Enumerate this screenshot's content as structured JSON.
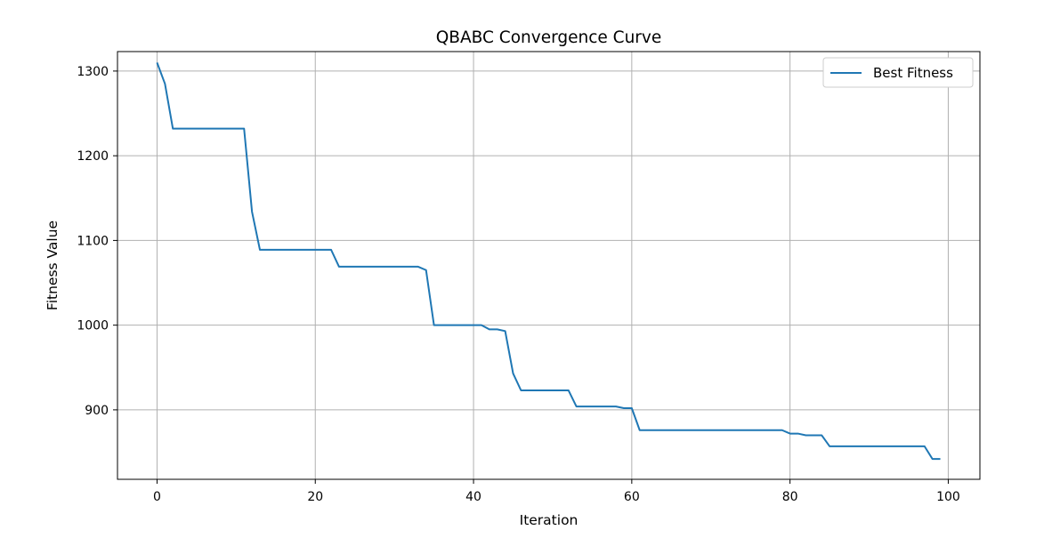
{
  "chart_data": {
    "type": "line",
    "title": "QBABC Convergence Curve",
    "xlabel": "Iteration",
    "ylabel": "Fitness Value",
    "xlim": [
      -5,
      104
    ],
    "ylim": [
      818,
      1323
    ],
    "xticks": [
      0,
      20,
      40,
      60,
      80,
      100
    ],
    "yticks": [
      900,
      1000,
      1100,
      1200,
      1300
    ],
    "grid": true,
    "legend_position": "top-right",
    "series": [
      {
        "name": "Best Fitness",
        "color": "#1f77b4",
        "x": [
          0,
          1,
          2,
          3,
          4,
          5,
          6,
          7,
          8,
          9,
          10,
          11,
          12,
          13,
          14,
          15,
          16,
          17,
          18,
          19,
          20,
          21,
          22,
          23,
          24,
          25,
          26,
          27,
          28,
          29,
          30,
          31,
          32,
          33,
          34,
          35,
          36,
          37,
          38,
          39,
          40,
          41,
          42,
          43,
          44,
          45,
          46,
          47,
          48,
          49,
          50,
          51,
          52,
          53,
          54,
          55,
          56,
          57,
          58,
          59,
          60,
          61,
          62,
          63,
          64,
          65,
          66,
          67,
          68,
          69,
          70,
          71,
          72,
          73,
          74,
          75,
          76,
          77,
          78,
          79,
          80,
          81,
          82,
          83,
          84,
          85,
          86,
          87,
          88,
          89,
          90,
          91,
          92,
          93,
          94,
          95,
          96,
          97,
          98,
          99
        ],
        "values": [
          1310,
          1285,
          1232,
          1232,
          1232,
          1232,
          1232,
          1232,
          1232,
          1232,
          1232,
          1232,
          1134,
          1089,
          1089,
          1089,
          1089,
          1089,
          1089,
          1089,
          1089,
          1089,
          1089,
          1069,
          1069,
          1069,
          1069,
          1069,
          1069,
          1069,
          1069,
          1069,
          1069,
          1069,
          1065,
          1000,
          1000,
          1000,
          1000,
          1000,
          1000,
          1000,
          995,
          995,
          993,
          943,
          923,
          923,
          923,
          923,
          923,
          923,
          923,
          904,
          904,
          904,
          904,
          904,
          904,
          902,
          902,
          876,
          876,
          876,
          876,
          876,
          876,
          876,
          876,
          876,
          876,
          876,
          876,
          876,
          876,
          876,
          876,
          876,
          876,
          876,
          872,
          872,
          870,
          870,
          870,
          857,
          857,
          857,
          857,
          857,
          857,
          857,
          857,
          857,
          857,
          857,
          857,
          857,
          842,
          842
        ]
      }
    ]
  }
}
